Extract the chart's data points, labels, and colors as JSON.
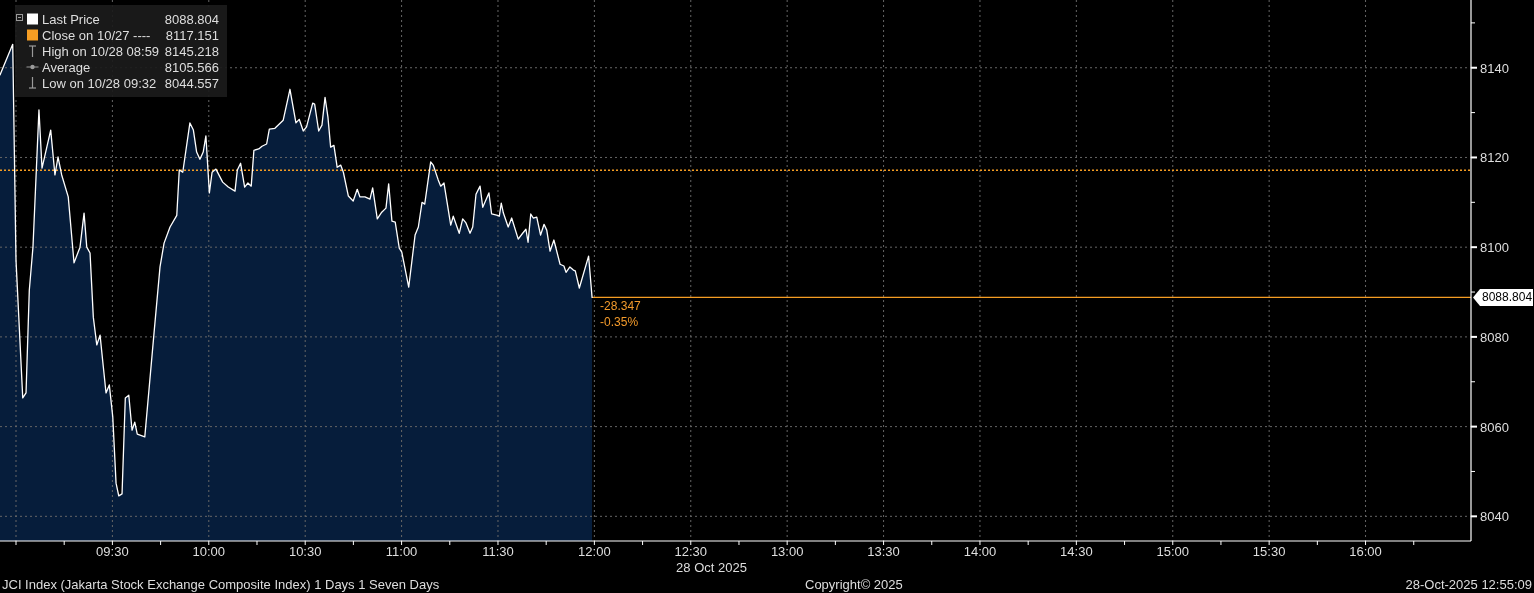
{
  "chart_data": {
    "type": "area",
    "title": "JCI Index (Jakarta Stock Exchange Composite Index) 1 Days 1 Seven Days",
    "xlabel": "28 Oct 2025",
    "series": [
      {
        "name": "Last Price",
        "color": "#ffffff",
        "x": [
          8.917,
          8.983,
          9.0,
          9.035,
          9.052,
          9.069,
          9.088,
          9.119,
          9.135,
          9.18,
          9.202,
          9.218,
          9.237,
          9.271,
          9.301,
          9.332,
          9.353,
          9.367,
          9.384,
          9.401,
          9.419,
          9.436,
          9.453,
          9.467,
          9.484,
          9.502,
          9.519,
          9.533,
          9.55,
          9.567,
          9.585,
          9.602,
          9.616,
          9.629,
          9.668,
          9.686,
          9.716,
          9.747,
          9.768,
          9.799,
          9.834,
          9.847,
          9.865,
          9.902,
          9.92,
          9.937,
          9.954,
          9.971,
          9.985,
          10.003,
          10.017,
          10.037,
          10.072,
          10.101,
          10.136,
          10.148,
          10.165,
          10.186,
          10.203,
          10.22,
          10.234,
          10.259,
          10.276,
          10.3,
          10.314,
          10.343,
          10.386,
          10.421,
          10.452,
          10.469,
          10.49,
          10.507,
          10.539,
          10.549,
          10.57,
          10.587,
          10.603,
          10.618,
          10.632,
          10.649,
          10.666,
          10.684,
          10.698,
          10.724,
          10.749,
          10.77,
          10.784,
          10.81,
          10.836,
          10.85,
          10.874,
          10.897,
          10.919,
          10.933,
          10.95,
          10.967,
          10.988,
          11.001,
          11.037,
          11.07,
          11.087,
          11.106,
          11.12,
          11.151,
          11.164,
          11.19,
          11.203,
          11.22,
          11.255,
          11.268,
          11.299,
          11.317,
          11.334,
          11.355,
          11.369,
          11.386,
          11.407,
          11.421,
          11.453,
          11.467,
          11.498,
          11.507,
          11.517,
          11.528,
          11.553,
          11.571,
          11.605,
          11.628,
          11.645,
          11.656,
          11.67,
          11.683,
          11.701,
          11.721,
          11.739,
          11.753,
          11.77,
          11.79,
          11.822,
          11.842,
          11.853,
          11.873,
          11.891,
          11.901,
          11.922,
          11.97,
          11.988
        ],
        "values": [
          8138.4,
          8145.218,
          8097.1,
          8066.4,
          8067.5,
          8090.4,
          8100,
          8130.6,
          8117.6,
          8126.1,
          8116.1,
          8120.1,
          8116.1,
          8111.2,
          8096.5,
          8100,
          8107.6,
          8100,
          8098.7,
          8084.4,
          8078.2,
          8080.4,
          8073.3,
          8067.5,
          8069.3,
          8062.1,
          8047.4,
          8044.557,
          8045,
          8066.4,
          8067,
          8059.2,
          8061,
          8058.3,
          8057.7,
          8066.4,
          8080.9,
          8095.6,
          8100.9,
          8104.5,
          8107.1,
          8117.2,
          8116.7,
          8127.7,
          8126.1,
          8121.2,
          8119.6,
          8121.2,
          8124.8,
          8112.1,
          8116.7,
          8117.4,
          8114.5,
          8113.4,
          8112.5,
          8117.2,
          8118.7,
          8113.4,
          8114.3,
          8113.6,
          8121.6,
          8121.9,
          8122.5,
          8123,
          8126.3,
          8126.5,
          8128.3,
          8135.2,
          8127.7,
          8128.5,
          8125.9,
          8126.8,
          8132.1,
          8131.9,
          8125.9,
          8127.2,
          8133.4,
          8129,
          8122.3,
          8122.7,
          8117.8,
          8118.3,
          8116.7,
          8111.4,
          8110.3,
          8112.9,
          8111.2,
          8111.2,
          8110.7,
          8113.2,
          8106.3,
          8107.8,
          8108.7,
          8114.1,
          8105.8,
          8105.6,
          8099.8,
          8098.9,
          8091.1,
          8102.7,
          8104.5,
          8110,
          8109.6,
          8119,
          8118.3,
          8115,
          8113.6,
          8114.3,
          8104.9,
          8106.9,
          8103.1,
          8106.3,
          8105.4,
          8103.1,
          8104.5,
          8111.8,
          8113.6,
          8108.9,
          8112.1,
          8107.4,
          8107.1,
          8106.9,
          8109.8,
          8107.6,
          8104.5,
          8106.5,
          8101.8,
          8103.1,
          8104,
          8101.1,
          8107.4,
          8106.5,
          8106.7,
          8102.7,
          8105.1,
          8103.8,
          8099.1,
          8101.6,
          8096.2,
          8095.8,
          8094.4,
          8095.6,
          8094.9,
          8094.7,
          8090.9,
          8098,
          8088.804
        ]
      }
    ],
    "xlim": [
      8.917,
      16.547
    ],
    "xticks": [
      {
        "value": 9,
        "label": null
      },
      {
        "value": 9.25,
        "label": null
      },
      {
        "value": 9.5,
        "label": "09:30"
      },
      {
        "value": 9.75,
        "label": null
      },
      {
        "value": 10,
        "label": "10:00"
      },
      {
        "value": 10.25,
        "label": null
      },
      {
        "value": 10.5,
        "label": "10:30"
      },
      {
        "value": 10.75,
        "label": null
      },
      {
        "value": 11,
        "label": "11:00"
      },
      {
        "value": 11.25,
        "label": null
      },
      {
        "value": 11.5,
        "label": "11:30"
      },
      {
        "value": 11.75,
        "label": null
      },
      {
        "value": 12,
        "label": "12:00"
      },
      {
        "value": 12.25,
        "label": null
      },
      {
        "value": 12.5,
        "label": "12:30"
      },
      {
        "value": 12.75,
        "label": null
      },
      {
        "value": 13,
        "label": "13:00"
      },
      {
        "value": 13.25,
        "label": null
      },
      {
        "value": 13.5,
        "label": "13:30"
      },
      {
        "value": 13.75,
        "label": null
      },
      {
        "value": 14,
        "label": "14:00"
      },
      {
        "value": 14.25,
        "label": null
      },
      {
        "value": 14.5,
        "label": "14:30"
      },
      {
        "value": 14.75,
        "label": null
      },
      {
        "value": 15,
        "label": "15:00"
      },
      {
        "value": 15.25,
        "label": null
      },
      {
        "value": 15.5,
        "label": "15:30"
      },
      {
        "value": 15.75,
        "label": null
      },
      {
        "value": 16,
        "label": "16:00"
      },
      {
        "value": 16.25,
        "label": null
      }
    ],
    "ylim": [
      8034.5,
      8155.1
    ],
    "yticks": [
      8040,
      {
        "value": 8050,
        "label": null
      },
      8060,
      {
        "value": 8070,
        "label": null
      },
      8080,
      {
        "value": 8090,
        "label": null
      },
      8100,
      {
        "value": 8110,
        "label": null
      },
      8120,
      {
        "value": 8130,
        "label": null
      },
      8140,
      {
        "value": 8150,
        "label": null
      }
    ],
    "grid": true,
    "legend": "top left",
    "ref_lines": [
      {
        "axis": "y",
        "value": 8117.151,
        "label": "Close on 10/27 ----",
        "color": "#f59d23",
        "line_style": "dotted"
      },
      {
        "axis": "y",
        "value": 8088.804,
        "label": "8088.804",
        "color": "#f59d23",
        "line_style": "solid"
      }
    ],
    "annotations": [
      {
        "text": "-28.347",
        "x": 11.988,
        "y": 8086.9
      },
      {
        "text": "-0.35%",
        "x": 11.988,
        "y": 8083.3
      },
      "8088.804",
      "8117.151",
      "High on 10/28 08:59 8145.218",
      "Average 8105.566",
      "Low on 10/28 09:32 8044.557",
      "Copyright© 2025",
      "28-Oct-2025 12:55:09"
    ]
  }
}
